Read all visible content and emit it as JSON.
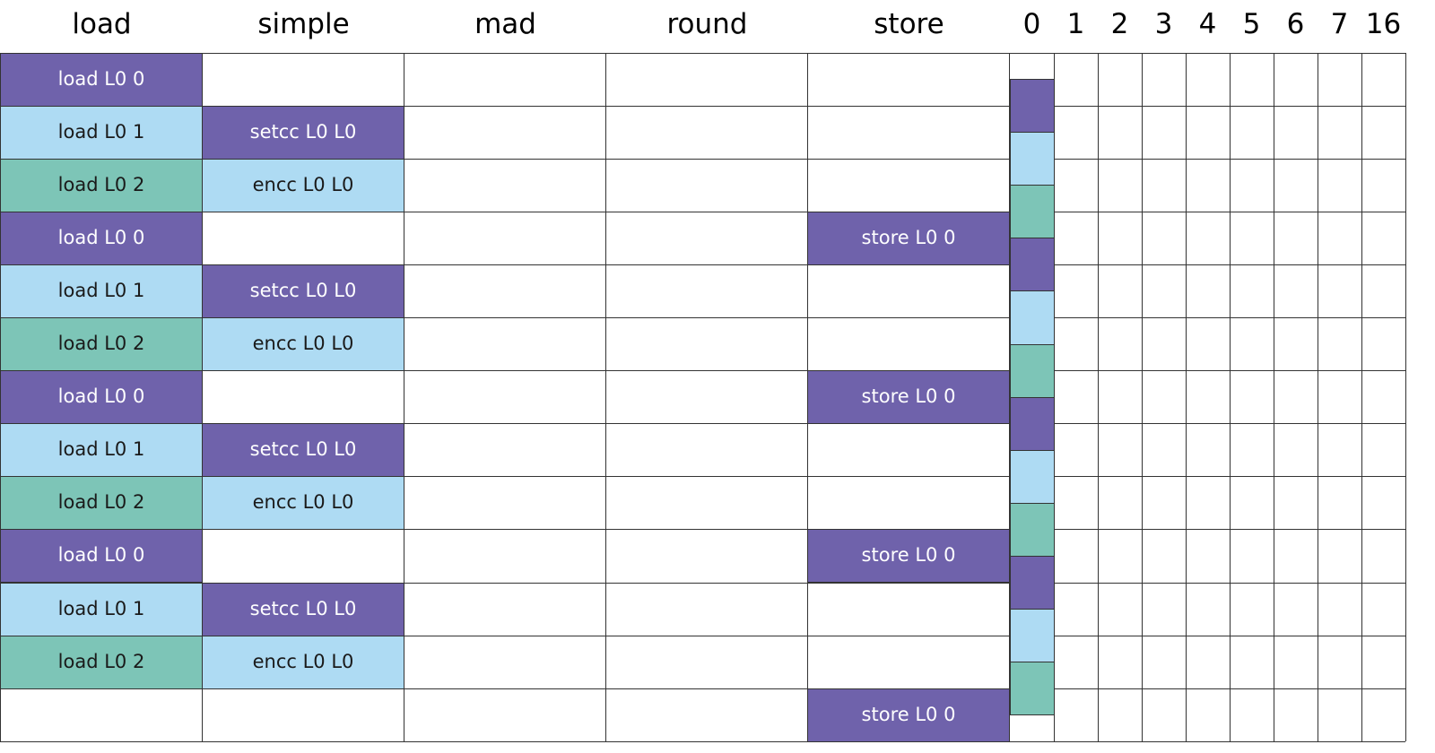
{
  "colors": {
    "purple": "#6f62ab",
    "light_blue": "#aedbf3",
    "teal": "#7dc5b7",
    "grid": "#333333",
    "text_dark": "#1a1a1a",
    "text_light": "#ffffff"
  },
  "unit_headers": [
    "load",
    "simple",
    "mad",
    "round",
    "store"
  ],
  "register_headers": [
    "0",
    "1",
    "2",
    "3",
    "4",
    "5",
    "6",
    "7",
    "16"
  ],
  "rows": [
    [
      "load L0 0",
      "",
      "",
      "",
      ""
    ],
    [
      "load L0 1",
      "setcc L0 L0",
      "",
      "",
      ""
    ],
    [
      "load L0 2",
      "encc L0 L0",
      "",
      "",
      ""
    ],
    [
      "load L0 0",
      "",
      "",
      "",
      "store L0 0"
    ],
    [
      "load L0 1",
      "setcc L0 L0",
      "",
      "",
      ""
    ],
    [
      "load L0 2",
      "encc L0 L0",
      "",
      "",
      ""
    ],
    [
      "load L0 0",
      "",
      "",
      "",
      "store L0 0"
    ],
    [
      "load L0 1",
      "setcc L0 L0",
      "",
      "",
      ""
    ],
    [
      "load L0 2",
      "encc L0 L0",
      "",
      "",
      ""
    ],
    [
      "load L0 0",
      "",
      "",
      "",
      "store L0 0"
    ],
    [
      "load L0 1",
      "setcc L0 L0",
      "",
      "",
      ""
    ],
    [
      "load L0 2",
      "encc L0 L0",
      "",
      "",
      ""
    ],
    [
      "",
      "",
      "",
      "",
      "store L0 0"
    ]
  ],
  "cell_colors": [
    [
      "purple",
      "",
      "",
      "",
      ""
    ],
    [
      "light_blue",
      "purple",
      "",
      "",
      ""
    ],
    [
      "teal",
      "light_blue",
      "",
      "",
      ""
    ],
    [
      "purple",
      "",
      "",
      "",
      "purple"
    ],
    [
      "light_blue",
      "purple",
      "",
      "",
      ""
    ],
    [
      "teal",
      "light_blue",
      "",
      "",
      ""
    ],
    [
      "purple",
      "",
      "",
      "",
      "purple"
    ],
    [
      "light_blue",
      "purple",
      "",
      "",
      ""
    ],
    [
      "teal",
      "light_blue",
      "",
      "",
      ""
    ],
    [
      "purple",
      "",
      "",
      "",
      "purple"
    ],
    [
      "light_blue",
      "purple",
      "",
      "",
      ""
    ],
    [
      "teal",
      "light_blue",
      "",
      "",
      ""
    ],
    [
      "",
      "",
      "",
      "",
      "purple"
    ]
  ],
  "register0_lifetimes": [
    {
      "color": "purple",
      "start": 0.5,
      "end": 1.5
    },
    {
      "color": "light_blue",
      "start": 1.5,
      "end": 2.5
    },
    {
      "color": "teal",
      "start": 2.5,
      "end": 3.5
    },
    {
      "color": "purple",
      "start": 3.5,
      "end": 4.5
    },
    {
      "color": "light_blue",
      "start": 4.5,
      "end": 5.5
    },
    {
      "color": "teal",
      "start": 5.5,
      "end": 6.5
    },
    {
      "color": "purple",
      "start": 6.5,
      "end": 7.5
    },
    {
      "color": "light_blue",
      "start": 7.5,
      "end": 8.5
    },
    {
      "color": "teal",
      "start": 8.5,
      "end": 9.5
    },
    {
      "color": "purple",
      "start": 9.5,
      "end": 10.5
    },
    {
      "color": "light_blue",
      "start": 10.5,
      "end": 11.5
    },
    {
      "color": "teal",
      "start": 11.5,
      "end": 12.5
    }
  ]
}
